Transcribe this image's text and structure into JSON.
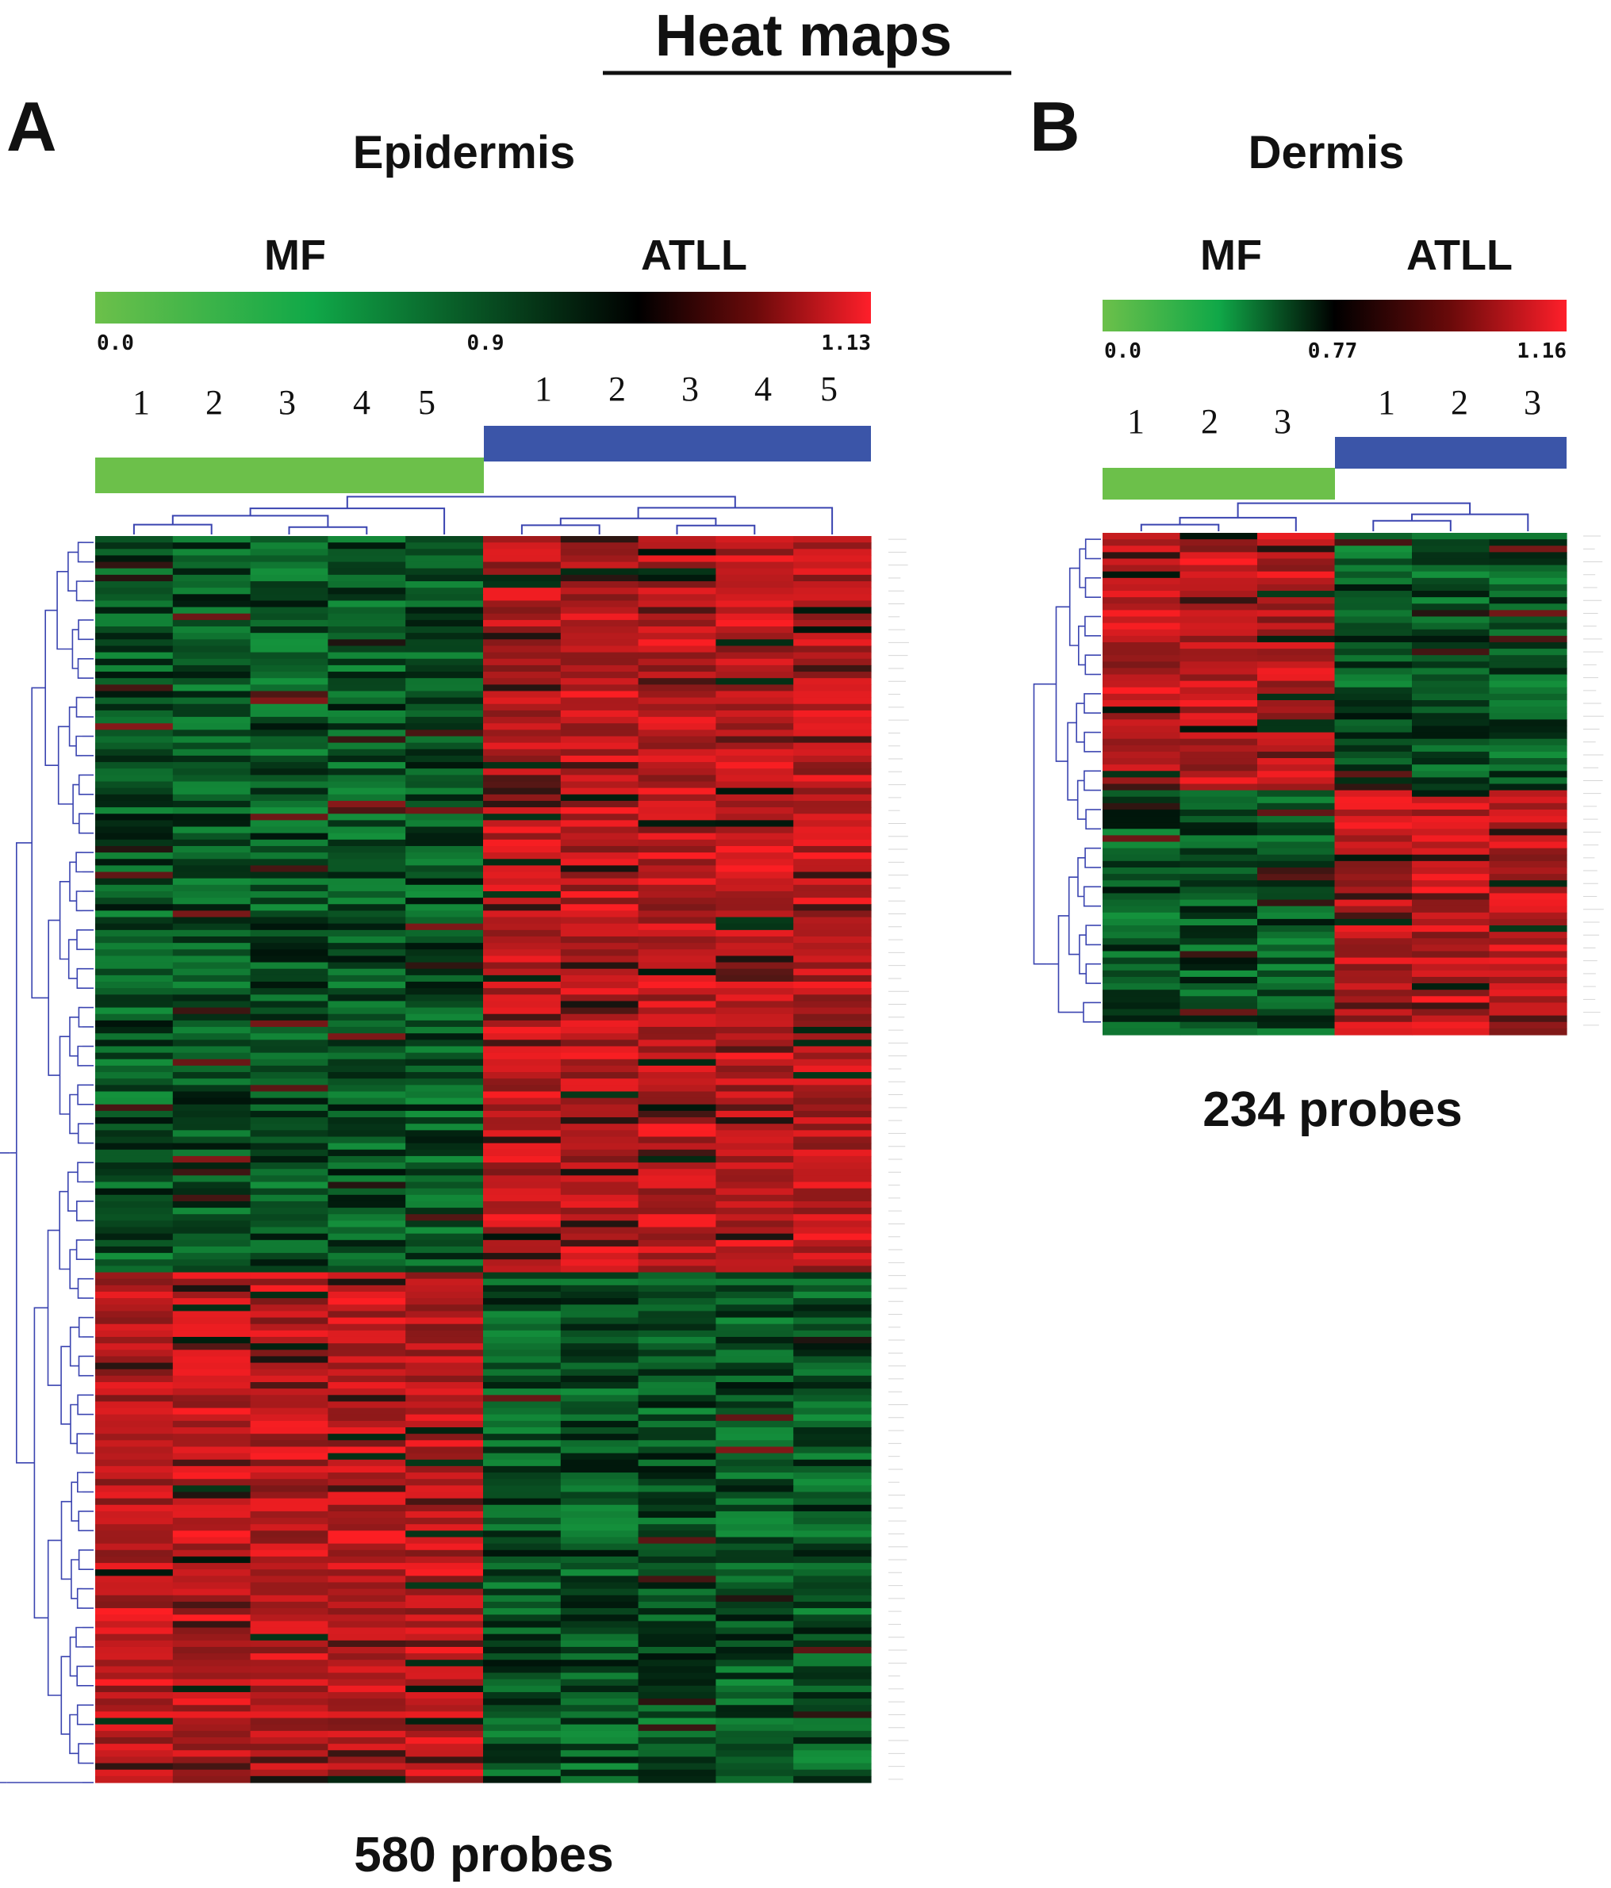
{
  "title": "Heat maps",
  "chart_data": [
    {
      "type": "heatmap",
      "panel": "A",
      "subtitle": "Epidermis",
      "groups": [
        {
          "name": "MF",
          "samples": [
            "1",
            "2",
            "3",
            "4",
            "5"
          ],
          "bar_color": "#6cc04a"
        },
        {
          "name": "ATLL",
          "samples": [
            "1",
            "2",
            "3",
            "4",
            "5"
          ],
          "bar_color": "#3b55a8"
        }
      ],
      "color_scale": {
        "min": "0.0",
        "mid": "0.9",
        "max": "1.13",
        "colors": [
          "#6cc04a",
          "#000000",
          "#ff1f1f"
        ]
      },
      "row_count": 580,
      "row_blocks": [
        {
          "rows_fraction": 0.59,
          "MF": "low (green)",
          "ATLL": "high (red)"
        },
        {
          "rows_fraction": 0.41,
          "MF": "high (red)",
          "ATLL": "low (green)"
        }
      ],
      "footer": "580 probes"
    },
    {
      "type": "heatmap",
      "panel": "B",
      "subtitle": "Dermis",
      "groups": [
        {
          "name": "MF",
          "samples": [
            "1",
            "2",
            "3"
          ],
          "bar_color": "#6cc04a"
        },
        {
          "name": "ATLL",
          "samples": [
            "1",
            "2",
            "3"
          ],
          "bar_color": "#3b55a8"
        }
      ],
      "color_scale": {
        "min": "0.0",
        "mid": "0.77",
        "max": "1.16",
        "colors": [
          "#6cc04a",
          "#000000",
          "#ff1f1f"
        ]
      },
      "row_count": 234,
      "row_blocks": [
        {
          "rows_fraction": 0.51,
          "MF": "high (red)",
          "ATLL": "low (green)"
        },
        {
          "rows_fraction": 0.49,
          "MF": "low (green)",
          "ATLL": "high (red)"
        }
      ],
      "footer": "234 probes"
    }
  ],
  "colors": {
    "low": "#2aa84a",
    "mid": "#000000",
    "high": "#ff2020",
    "dendrogram": "#3a44b0",
    "mf_bar": "#6cc04a",
    "atll_bar": "#3b55a8"
  }
}
